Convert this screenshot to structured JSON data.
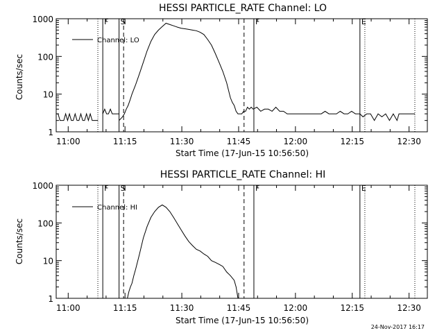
{
  "colors": {
    "background": "#ffffff",
    "ink": "#000000"
  },
  "footer": {
    "timestamp": "24-Nov-2017 16:17"
  },
  "chart_data": [
    {
      "type": "line",
      "title": "HESSI PARTICLE_RATE Channel: LO",
      "xlabel": "Start Time (17-Jun-15 10:56:50)",
      "ylabel": "Counts/sec",
      "yscale": "log",
      "ylim": [
        1,
        1000
      ],
      "xlim_minutes": [
        0,
        98
      ],
      "xticks": [
        {
          "t": 3.17,
          "label": "11:00"
        },
        {
          "t": 18.17,
          "label": "11:15"
        },
        {
          "t": 33.17,
          "label": "11:30"
        },
        {
          "t": 48.17,
          "label": "11:45"
        },
        {
          "t": 63.17,
          "label": "12:00"
        },
        {
          "t": 78.17,
          "label": "12:15"
        },
        {
          "t": 93.17,
          "label": "12:30"
        }
      ],
      "yticks": [
        {
          "v": 1,
          "label": "1"
        },
        {
          "v": 10,
          "label": "10"
        },
        {
          "v": 100,
          "label": "100"
        },
        {
          "v": 1000,
          "label": "1000"
        }
      ],
      "legend": {
        "label": "Channel: LO",
        "position": "top-left"
      },
      "markers": [
        {
          "t": 11.0,
          "style": "dotted"
        },
        {
          "t": 12.3,
          "style": "solid",
          "label": "F"
        },
        {
          "t": 16.6,
          "style": "solid",
          "label": "S"
        },
        {
          "t": 17.8,
          "style": "dashed"
        },
        {
          "t": 49.6,
          "style": "dashed"
        },
        {
          "t": 52.2,
          "style": "solid",
          "label": "F"
        },
        {
          "t": 80.2,
          "style": "solid",
          "label": "E"
        },
        {
          "t": 81.5,
          "style": "dotted"
        },
        {
          "t": 94.7,
          "style": "dotted"
        }
      ],
      "series": [
        {
          "name": "Channel: LO",
          "segments": [
            {
              "t": [
                0.0,
                0.5,
                1.0,
                1.5,
                2.0,
                2.5,
                3.0,
                3.5,
                4.0,
                4.5,
                5.0,
                5.5,
                6.0,
                6.5,
                7.0,
                7.5,
                8.0,
                8.5,
                9.0,
                9.5,
                10.0,
                10.5,
                11.0
              ],
              "v": [
                3,
                3,
                2,
                2,
                2,
                3,
                2,
                3,
                2,
                2,
                3,
                2,
                2,
                3,
                2,
                2,
                3,
                2,
                3,
                2,
                2,
                2,
                2
              ]
            },
            {
              "t": [
                12.3,
                12.8,
                13.3,
                13.8,
                14.3,
                14.8,
                15.3,
                15.8,
                16.6
              ],
              "v": [
                3,
                4,
                3,
                3,
                4,
                3,
                3,
                3,
                3
              ]
            },
            {
              "t": [
                16.6,
                17.0,
                17.5,
                18.0,
                18.5,
                19.0,
                19.5,
                20.0,
                21.0,
                22.0,
                23.0,
                24.0,
                25.0,
                26.0,
                27.0,
                28.0,
                29.0,
                30.0,
                31.0,
                32.0,
                33.0,
                34.0,
                35.0,
                36.0,
                37.0,
                38.0,
                39.0,
                40.0,
                41.0,
                42.0,
                43.0,
                44.0,
                45.0,
                46.0,
                46.5,
                47.0,
                47.5,
                48.0,
                48.5,
                49.0,
                49.5,
                50.0,
                50.5,
                51.0,
                51.5,
                52.0,
                53.0,
                54.0,
                55.0,
                56.0,
                57.0,
                58.0,
                59.0,
                60.0,
                61.0,
                62.0,
                63.0,
                64.0,
                65.0,
                66.0,
                67.0,
                68.0,
                69.0,
                70.0,
                71.0,
                72.0,
                73.0,
                74.0,
                75.0,
                76.0,
                77.0,
                78.0,
                79.0,
                80.2
              ],
              "v": [
                2,
                2.2,
                2.5,
                3,
                4,
                5,
                7,
                10,
                18,
                35,
                70,
                140,
                250,
                380,
                500,
                620,
                760,
                700,
                650,
                600,
                560,
                540,
                520,
                500,
                480,
                440,
                380,
                280,
                200,
                120,
                70,
                40,
                20,
                8,
                6,
                5,
                3.5,
                3,
                3,
                3,
                3.5,
                3.5,
                4.5,
                4,
                4.5,
                4,
                4.5,
                3.5,
                4,
                4,
                3.5,
                4.5,
                3.5,
                3.5,
                3,
                3,
                3,
                3,
                3,
                3,
                3,
                3,
                3,
                3,
                3.5,
                3,
                3,
                3,
                3.5,
                3,
                3,
                3.5,
                3,
                3
              ]
            },
            {
              "t": [
                80.2,
                81.0,
                82.0,
                83.0,
                84.0,
                85.0,
                86.0,
                87.0,
                88.0,
                89.0,
                90.0,
                90.5,
                91.0,
                92.0,
                93.0,
                94.7
              ],
              "v": [
                3,
                2.5,
                3,
                3,
                2,
                3,
                2.5,
                3,
                2,
                3,
                2,
                3,
                3,
                3,
                3,
                3
              ]
            }
          ]
        }
      ]
    },
    {
      "type": "line",
      "title": "HESSI PARTICLE_RATE Channel: HI",
      "xlabel": "Start Time (17-Jun-15 10:56:50)",
      "ylabel": "Counts/sec",
      "yscale": "log",
      "ylim": [
        1,
        1000
      ],
      "xlim_minutes": [
        0,
        98
      ],
      "xticks": [
        {
          "t": 3.17,
          "label": "11:00"
        },
        {
          "t": 18.17,
          "label": "11:15"
        },
        {
          "t": 33.17,
          "label": "11:30"
        },
        {
          "t": 48.17,
          "label": "11:45"
        },
        {
          "t": 63.17,
          "label": "12:00"
        },
        {
          "t": 78.17,
          "label": "12:15"
        },
        {
          "t": 93.17,
          "label": "12:30"
        }
      ],
      "yticks": [
        {
          "v": 1,
          "label": "1"
        },
        {
          "v": 10,
          "label": "10"
        },
        {
          "v": 100,
          "label": "100"
        },
        {
          "v": 1000,
          "label": "1000"
        }
      ],
      "legend": {
        "label": "Channel: HI",
        "position": "top-left"
      },
      "markers": [
        {
          "t": 11.0,
          "style": "dotted"
        },
        {
          "t": 12.3,
          "style": "solid",
          "label": "F"
        },
        {
          "t": 16.6,
          "style": "solid",
          "label": "S"
        },
        {
          "t": 17.8,
          "style": "dashed"
        },
        {
          "t": 49.6,
          "style": "dashed"
        },
        {
          "t": 52.2,
          "style": "solid",
          "label": "F"
        },
        {
          "t": 80.2,
          "style": "solid",
          "label": "E"
        },
        {
          "t": 81.5,
          "style": "dotted"
        },
        {
          "t": 94.7,
          "style": "dotted"
        }
      ],
      "series": [
        {
          "name": "Channel: HI",
          "segments": [
            {
              "t": [
                18.8,
                19.2,
                19.6,
                20.0,
                20.5,
                21.0,
                22.0,
                23.0,
                24.0,
                25.0,
                26.0,
                27.0,
                28.0,
                29.0,
                30.0,
                31.0,
                32.0,
                33.0,
                34.0,
                35.0,
                36.0,
                37.0,
                38.0,
                39.0,
                40.0,
                41.0,
                42.0,
                43.0,
                44.0,
                45.0,
                46.0,
                47.0,
                47.5,
                48.0
              ],
              "v": [
                1,
                1.5,
                2,
                2.5,
                4,
                6,
                15,
                40,
                80,
                140,
                200,
                260,
                300,
                260,
                200,
                140,
                95,
                65,
                45,
                32,
                25,
                20,
                18,
                15,
                13,
                10,
                9,
                8,
                7,
                5,
                4,
                3,
                2,
                1
              ]
            }
          ]
        }
      ]
    }
  ]
}
